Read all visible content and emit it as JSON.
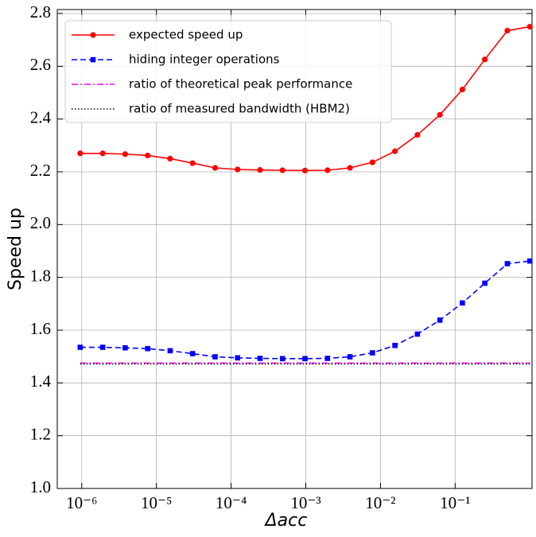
{
  "chart_data": {
    "type": "line",
    "xlabel": "Δacc",
    "ylabel": "Speed up",
    "xscale": "log",
    "grid": true,
    "legend": "upper left",
    "x": [
      9.5367431640625e-07,
      1.9073486328125e-06,
      3.814697265625e-06,
      7.62939453125e-06,
      1.52587890625e-05,
      3.0517578125e-05,
      6.103515625e-05,
      0.0001220703125,
      0.000244140625,
      0.00048828125,
      0.0009765625,
      0.001953125,
      0.00390625,
      0.0078125,
      0.015625,
      0.03125,
      0.0625,
      0.125,
      0.25,
      0.5,
      1
    ],
    "series": [
      {
        "name": "expected speed up",
        "color": "#ff0000",
        "linestyle": "solid",
        "marker": "circle",
        "values": [
          2.27,
          2.27,
          2.267,
          2.262,
          2.25,
          2.233,
          2.215,
          2.209,
          2.207,
          2.206,
          2.205,
          2.206,
          2.215,
          2.236,
          2.278,
          2.34,
          2.416,
          2.512,
          2.626,
          2.735,
          2.75
        ]
      },
      {
        "name": "hiding integer operations",
        "color": "#0000ff",
        "linestyle": "dashed",
        "marker": "square",
        "values": [
          1.535,
          1.535,
          1.533,
          1.53,
          1.522,
          1.511,
          1.499,
          1.495,
          1.493,
          1.492,
          1.492,
          1.493,
          1.499,
          1.514,
          1.542,
          1.585,
          1.638,
          1.703,
          1.778,
          1.852,
          1.862
        ]
      },
      {
        "name": "ratio of theoretical peak performance",
        "color": "#ff00ff",
        "linestyle": "dashdot",
        "marker": "none",
        "values": [
          1.475,
          1.475,
          1.475,
          1.475,
          1.475,
          1.475,
          1.475,
          1.475,
          1.475,
          1.475,
          1.475,
          1.475,
          1.475,
          1.475,
          1.475,
          1.475,
          1.475,
          1.475,
          1.475,
          1.475,
          1.475
        ]
      },
      {
        "name": "ratio of measured bandwidth (HBM2)",
        "color": "#000000",
        "linestyle": "dotted",
        "marker": "none",
        "values": [
          1.472,
          1.472,
          1.472,
          1.472,
          1.472,
          1.472,
          1.472,
          1.472,
          1.472,
          1.472,
          1.472,
          1.472,
          1.472,
          1.472,
          1.472,
          1.472,
          1.472,
          1.472,
          1.472,
          1.472,
          1.472
        ]
      }
    ],
    "xlim": [
      4.7e-07,
      1.07
    ],
    "xticks": [
      {
        "value": 1e-06,
        "label": "10⁻⁶"
      },
      {
        "value": 1e-05,
        "label": "10⁻⁵"
      },
      {
        "value": 0.0001,
        "label": "10⁻⁴"
      },
      {
        "value": 0.001,
        "label": "10⁻³"
      },
      {
        "value": 0.01,
        "label": "10⁻²"
      },
      {
        "value": 0.1,
        "label": "10⁻¹"
      }
    ],
    "ylim": [
      1.0,
      2.815
    ],
    "yticks": [
      {
        "value": 1.0,
        "label": "1.0"
      },
      1.2,
      1.4,
      1.6,
      1.8,
      {
        "value": 2.0,
        "label": "2.0"
      },
      2.2,
      2.4,
      2.6,
      2.8
    ]
  }
}
